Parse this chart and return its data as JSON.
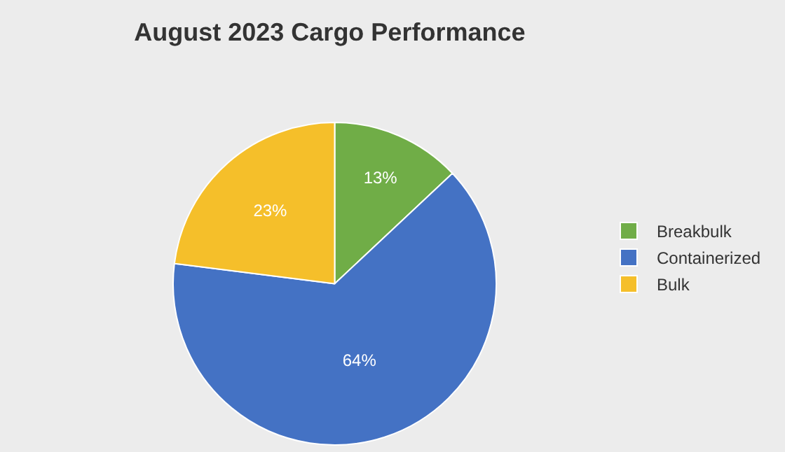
{
  "chart_data": {
    "type": "pie",
    "title": "August 2023 Cargo Performance",
    "categories": [
      "Breakbulk",
      "Containerized",
      "Bulk"
    ],
    "values": [
      13,
      64,
      23
    ],
    "value_labels": [
      "13%",
      "64%",
      "23%"
    ],
    "colors": [
      "#70ad47",
      "#4472c4",
      "#f5bf2a"
    ],
    "legend": "right"
  }
}
